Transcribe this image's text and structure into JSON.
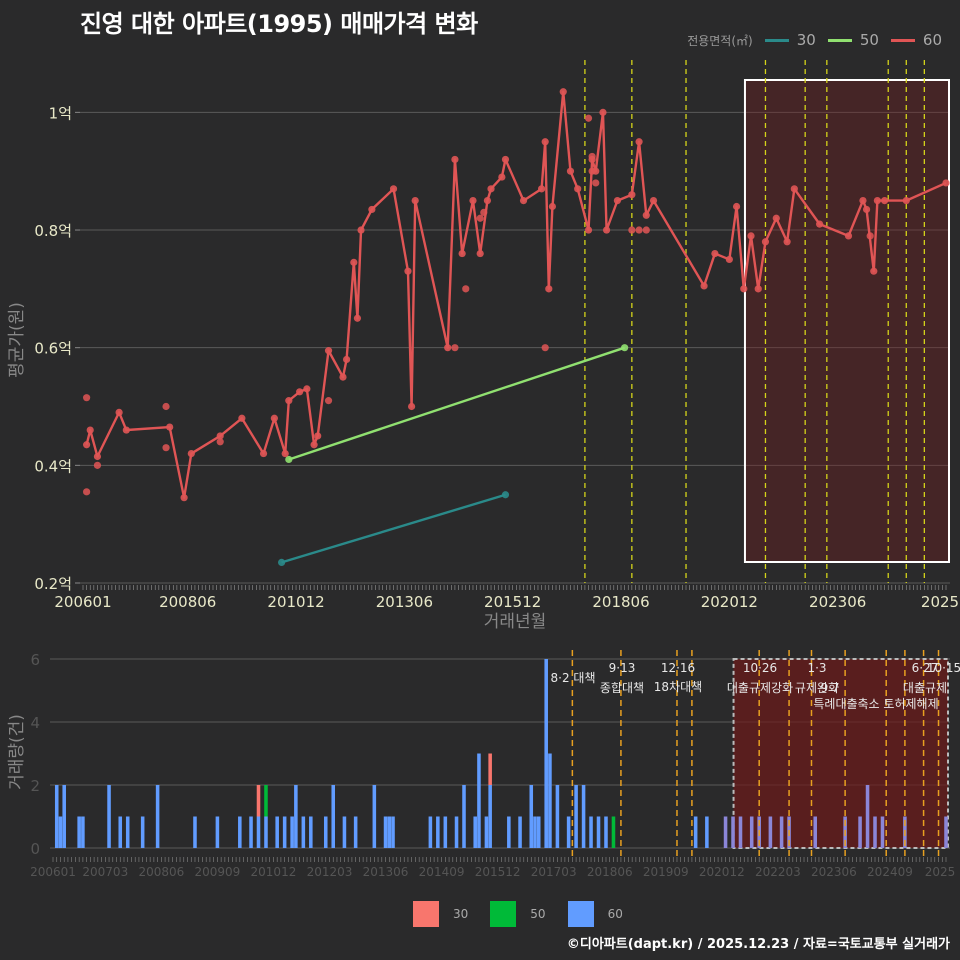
{
  "title": "진영 대한 아파트(1995) 매매가격 변화",
  "legend_top": {
    "title": "전용면적(㎡)",
    "items": [
      {
        "label": "30",
        "color": "#2a8a8a"
      },
      {
        "label": "50",
        "color": "#90e070"
      },
      {
        "label": "60",
        "color": "#e05555"
      }
    ]
  },
  "legend_bottom": {
    "items": [
      {
        "label": "30",
        "color": "#f8766d"
      },
      {
        "label": "50",
        "color": "#00ba38"
      },
      {
        "label": "60",
        "color": "#619cff"
      }
    ]
  },
  "footer": "©디아파트(dapt.kr) / 2025.12.23 / 자료=국토교통부 실거래가",
  "chart_data": [
    {
      "type": "line",
      "title": "진영 대한 아파트(1995) 매매가격 변화",
      "xlabel": "거래년월",
      "ylabel": "평균가(원)",
      "x_tick_labels": [
        "200601",
        "200806",
        "201012",
        "201306",
        "201512",
        "201806",
        "202012",
        "202306",
        "2025"
      ],
      "y_tick_labels": [
        "0.2억",
        "0.4억",
        "0.6억",
        "0.8억",
        "1억"
      ],
      "ylim": [
        0.2,
        1.05
      ],
      "grid": true,
      "legend_position": "top-right",
      "highlight_box": {
        "from": "2021-01",
        "to": "2025-12"
      },
      "policy_lines": [
        "2017-08",
        "2018-09",
        "2019-12",
        "2021-10",
        "2022-09",
        "2023-03",
        "2024-08",
        "2025-01",
        "2025-06"
      ],
      "series": [
        {
          "name": "30",
          "color": "#2a8a8a",
          "points": [
            [
              "2010-08",
              0.235
            ],
            [
              "2015-10",
              0.35
            ]
          ]
        },
        {
          "name": "50",
          "color": "#90e070",
          "points": [
            [
              "2010-10",
              0.41
            ],
            [
              "2018-07",
              0.6
            ]
          ]
        },
        {
          "name": "60",
          "color": "#e05555",
          "points": [
            [
              "2006-02",
              0.435
            ],
            [
              "2006-03",
              0.46
            ],
            [
              "2006-05",
              0.415
            ],
            [
              "2006-11",
              0.49
            ],
            [
              "2007-01",
              0.46
            ],
            [
              "2008-01",
              0.465
            ],
            [
              "2008-05",
              0.345
            ],
            [
              "2008-07",
              0.42
            ],
            [
              "2009-03",
              0.45
            ],
            [
              "2009-09",
              0.48
            ],
            [
              "2010-03",
              0.42
            ],
            [
              "2010-06",
              0.48
            ],
            [
              "2010-09",
              0.42
            ],
            [
              "2010-10",
              0.51
            ],
            [
              "2011-01",
              0.525
            ],
            [
              "2011-03",
              0.53
            ],
            [
              "2011-05",
              0.435
            ],
            [
              "2011-06",
              0.45
            ],
            [
              "2011-09",
              0.595
            ],
            [
              "2012-01",
              0.55
            ],
            [
              "2012-02",
              0.58
            ],
            [
              "2012-04",
              0.745
            ],
            [
              "2012-05",
              0.65
            ],
            [
              "2012-06",
              0.8
            ],
            [
              "2012-09",
              0.835
            ],
            [
              "2013-03",
              0.87
            ],
            [
              "2013-07",
              0.73
            ],
            [
              "2013-08",
              0.5
            ],
            [
              "2013-09",
              0.85
            ],
            [
              "2014-06",
              0.6
            ],
            [
              "2014-08",
              0.92
            ],
            [
              "2014-10",
              0.76
            ],
            [
              "2015-01",
              0.85
            ],
            [
              "2015-03",
              0.76
            ],
            [
              "2015-05",
              0.85
            ],
            [
              "2015-06",
              0.87
            ],
            [
              "2015-09",
              0.89
            ],
            [
              "2015-10",
              0.92
            ],
            [
              "2016-03",
              0.85
            ],
            [
              "2016-08",
              0.87
            ],
            [
              "2016-09",
              0.95
            ],
            [
              "2016-10",
              0.7
            ],
            [
              "2016-11",
              0.84
            ],
            [
              "2017-02",
              1.035
            ],
            [
              "2017-04",
              0.9
            ],
            [
              "2017-06",
              0.87
            ],
            [
              "2017-09",
              0.8
            ],
            [
              "2017-10",
              0.92
            ],
            [
              "2017-11",
              0.9
            ],
            [
              "2018-01",
              1.0
            ],
            [
              "2018-02",
              0.8
            ],
            [
              "2018-05",
              0.85
            ],
            [
              "2018-09",
              0.86
            ],
            [
              "2018-11",
              0.95
            ],
            [
              "2019-01",
              0.825
            ],
            [
              "2019-03",
              0.85
            ],
            [
              "2020-05",
              0.705
            ],
            [
              "2020-08",
              0.76
            ],
            [
              "2020-12",
              0.75
            ],
            [
              "2021-02",
              0.84
            ],
            [
              "2021-04",
              0.7
            ],
            [
              "2021-06",
              0.79
            ],
            [
              "2021-08",
              0.7
            ],
            [
              "2021-10",
              0.78
            ],
            [
              "2022-01",
              0.82
            ],
            [
              "2022-04",
              0.78
            ],
            [
              "2022-06",
              0.87
            ],
            [
              "2023-01",
              0.81
            ],
            [
              "2023-09",
              0.79
            ],
            [
              "2024-01",
              0.85
            ],
            [
              "2024-02",
              0.835
            ],
            [
              "2024-04",
              0.73
            ],
            [
              "2024-05",
              0.85
            ],
            [
              "2024-07",
              0.85
            ],
            [
              "2025-01",
              0.85
            ],
            [
              "2025-12",
              0.88
            ]
          ]
        }
      ]
    },
    {
      "type": "bar",
      "xlabel": "",
      "ylabel": "거래량(건)",
      "x_tick_labels": [
        "200601",
        "200703",
        "200806",
        "200909",
        "201012",
        "201203",
        "201306",
        "201409",
        "201512",
        "201703",
        "201806",
        "201909",
        "202012",
        "202203",
        "202306",
        "202409",
        "2025"
      ],
      "y_tick_labels": [
        "0",
        "2",
        "4",
        "6"
      ],
      "ylim": [
        0,
        6.2
      ],
      "stacked": true,
      "legend_position": "bottom",
      "highlight_box": {
        "from": "2021-01",
        "to": "2025-12",
        "style": "dashed"
      },
      "annotations": [
        {
          "date": "2017-08",
          "line1": "",
          "line2": "8·2 대책"
        },
        {
          "date": "2018-09",
          "line1": "9·13",
          "line2": "종합대책"
        },
        {
          "date": "2019-12",
          "line1": "12·16",
          "line2": "18차대책"
        },
        {
          "date": "2021-10",
          "line1": "10·26",
          "line2": "대출규제강화"
        },
        {
          "date": "2023-01",
          "line1": "1·3",
          "line2": "규제완화"
        },
        {
          "date": "2023-09",
          "line1": "",
          "line2": "9·7",
          "line3": "특례대출축소 토허제해제"
        },
        {
          "date": "2025-06",
          "line1": "6·27",
          "line2": "대출규제"
        },
        {
          "date": "2025-10",
          "line1": "10·15",
          "line2": ""
        }
      ],
      "series": [
        {
          "name": "60",
          "color": "#619cff",
          "points": [
            [
              "2006-02",
              2
            ],
            [
              "2006-03",
              1
            ],
            [
              "2006-04",
              2
            ],
            [
              "2006-08",
              1
            ],
            [
              "2006-09",
              1
            ],
            [
              "2007-04",
              2
            ],
            [
              "2007-07",
              1
            ],
            [
              "2007-09",
              1
            ],
            [
              "2008-01",
              1
            ],
            [
              "2008-05",
              2
            ],
            [
              "2009-03",
              1
            ],
            [
              "2009-09",
              1
            ],
            [
              "2010-03",
              1
            ],
            [
              "2010-06",
              1
            ],
            [
              "2010-08",
              1
            ],
            [
              "2010-10",
              1
            ],
            [
              "2011-01",
              1
            ],
            [
              "2011-03",
              1
            ],
            [
              "2011-05",
              1
            ],
            [
              "2011-06",
              2
            ],
            [
              "2011-08",
              1
            ],
            [
              "2011-10",
              1
            ],
            [
              "2012-02",
              1
            ],
            [
              "2012-04",
              2
            ],
            [
              "2012-07",
              1
            ],
            [
              "2012-10",
              1
            ],
            [
              "2013-03",
              2
            ],
            [
              "2013-06",
              1
            ],
            [
              "2013-07",
              1
            ],
            [
              "2013-08",
              1
            ],
            [
              "2014-06",
              1
            ],
            [
              "2014-08",
              1
            ],
            [
              "2014-10",
              1
            ],
            [
              "2015-01",
              1
            ],
            [
              "2015-03",
              2
            ],
            [
              "2015-06",
              1
            ],
            [
              "2015-07",
              3
            ],
            [
              "2015-09",
              1
            ],
            [
              "2015-10",
              2
            ],
            [
              "2016-03",
              1
            ],
            [
              "2016-06",
              1
            ],
            [
              "2016-09",
              2
            ],
            [
              "2016-10",
              1
            ],
            [
              "2016-11",
              1
            ],
            [
              "2017-01",
              6
            ],
            [
              "2017-02",
              3
            ],
            [
              "2017-04",
              2
            ],
            [
              "2017-07",
              1
            ],
            [
              "2017-09",
              2
            ],
            [
              "2017-11",
              2
            ],
            [
              "2018-01",
              1
            ],
            [
              "2018-03",
              1
            ],
            [
              "2018-05",
              1
            ],
            [
              "2020-05",
              1
            ],
            [
              "2020-08",
              1
            ],
            [
              "2021-01",
              1
            ],
            [
              "2021-03",
              1
            ],
            [
              "2021-05",
              1
            ],
            [
              "2021-08",
              1
            ],
            [
              "2021-10",
              1
            ],
            [
              "2022-01",
              1
            ],
            [
              "2022-04",
              1
            ],
            [
              "2022-06",
              1
            ],
            [
              "2023-01",
              1
            ],
            [
              "2023-09",
              1
            ],
            [
              "2024-01",
              1
            ],
            [
              "2024-03",
              2
            ],
            [
              "2024-05",
              1
            ],
            [
              "2024-07",
              1
            ],
            [
              "2025-01",
              1
            ],
            [
              "2025-12",
              1
            ]
          ]
        },
        {
          "name": "30",
          "color": "#f8766d",
          "points": [
            [
              "2010-08",
              1
            ],
            [
              "2015-10",
              1
            ]
          ]
        },
        {
          "name": "50",
          "color": "#00ba38",
          "points": [
            [
              "2010-10",
              1
            ],
            [
              "2018-07",
              1
            ]
          ]
        }
      ]
    }
  ]
}
